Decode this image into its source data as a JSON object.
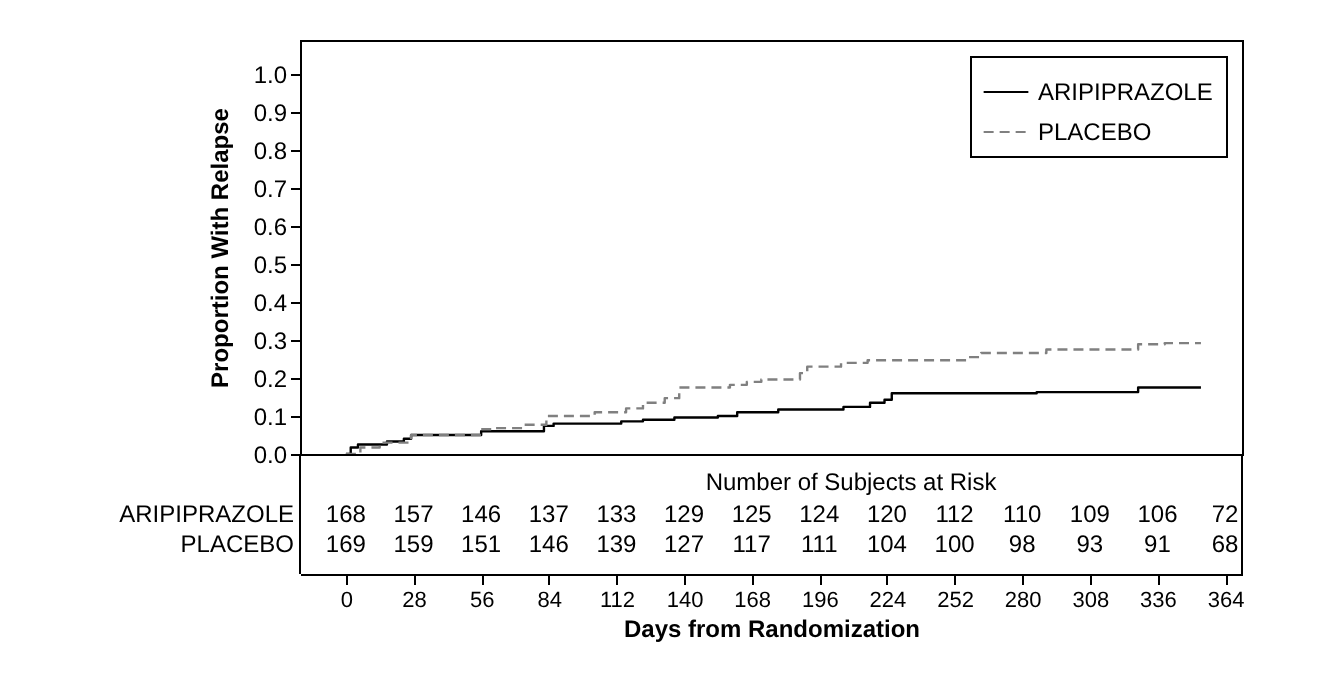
{
  "chart_data": {
    "type": "step",
    "xlabel": "Days from Randomization",
    "ylabel": "Proportion With Relapse",
    "xlim": [
      -19,
      371
    ],
    "ylim": [
      0,
      1.09
    ],
    "xticks": [
      0,
      28,
      56,
      84,
      112,
      140,
      168,
      196,
      224,
      252,
      280,
      308,
      336,
      364
    ],
    "yticks": [
      {
        "value": 0,
        "label": "0.0"
      },
      {
        "value": 0.1,
        "label": "0.1"
      },
      {
        "value": 0.2,
        "label": "0.2"
      },
      {
        "value": 0.3,
        "label": "0.3"
      },
      {
        "value": 0.4,
        "label": "0.4"
      },
      {
        "value": 0.5,
        "label": "0.5"
      },
      {
        "value": 0.6,
        "label": "0.6"
      },
      {
        "value": 0.7,
        "label": "0.7"
      },
      {
        "value": 0.8,
        "label": "0.8"
      },
      {
        "value": 0.9,
        "label": "0.9"
      },
      {
        "value": 1,
        "label": "1.0"
      }
    ],
    "legend": "top right",
    "series": [
      {
        "name": "ARIPIPRAZOLE",
        "color": "#000000",
        "line_style": "solid",
        "x": [
          0,
          2,
          5,
          17,
          24,
          27,
          56,
          82,
          86,
          114,
          123,
          136,
          154,
          162,
          179,
          206,
          217,
          223,
          226,
          286,
          328,
          354
        ],
        "values": [
          0,
          0.017,
          0.025,
          0.033,
          0.04,
          0.05,
          0.06,
          0.074,
          0.08,
          0.086,
          0.09,
          0.096,
          0.1,
          0.11,
          0.117,
          0.124,
          0.135,
          0.143,
          0.16,
          0.163,
          0.175,
          0.175
        ]
      },
      {
        "name": "PLACEBO",
        "color": "#808080",
        "line_style": "dashed",
        "x": [
          0,
          6,
          14,
          27,
          56,
          62,
          74,
          83,
          103,
          116,
          123,
          132,
          138,
          159,
          166,
          172,
          188,
          191,
          205,
          216,
          257,
          263,
          290,
          328,
          339,
          354
        ],
        "values": [
          0,
          0.017,
          0.03,
          0.05,
          0.065,
          0.068,
          0.077,
          0.1,
          0.11,
          0.12,
          0.135,
          0.147,
          0.175,
          0.182,
          0.19,
          0.196,
          0.213,
          0.23,
          0.24,
          0.247,
          0.255,
          0.266,
          0.275,
          0.289,
          0.292,
          0.292
        ]
      }
    ],
    "annotations": [
      "Number of Subjects at Risk",
      "ARIPIPRAZOLE",
      "168 157 146 137 133 129 125 124 120 112 110 109 106 72",
      "PLACEBO",
      "169 159 151 146 139 127 117 111 104 100 98 93 91 68"
    ]
  }
}
